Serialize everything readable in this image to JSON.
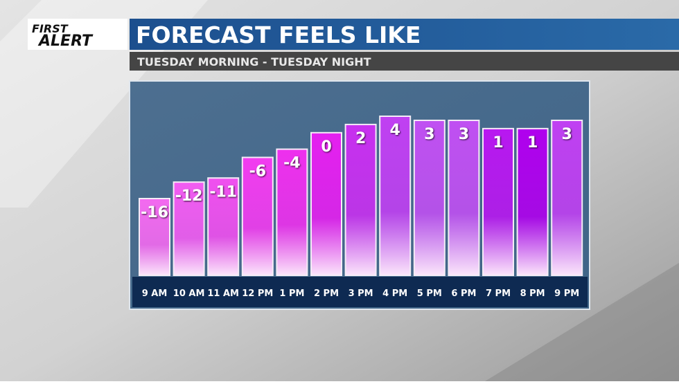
{
  "logo": {
    "line1": "FIRST",
    "line2": "ALERT"
  },
  "chart_data": {
    "type": "bar",
    "title": "FORECAST FEELS LIKE",
    "subtitle": "TUESDAY MORNING - TUESDAY NIGHT",
    "categories": [
      "9 AM",
      "10 AM",
      "11 AM",
      "12 PM",
      "1 PM",
      "2 PM",
      "3 PM",
      "4 PM",
      "5 PM",
      "6 PM",
      "7 PM",
      "8 PM",
      "9 PM"
    ],
    "values": [
      -16,
      -12,
      -11,
      -6,
      -4,
      0,
      2,
      4,
      3,
      3,
      1,
      1,
      3
    ],
    "colors": [
      "#f36af0",
      "#f25cf2",
      "#f050ef",
      "#f23cf0",
      "#ee30ee",
      "#e520f0",
      "#c830f0",
      "#c040f2",
      "#c050f2",
      "#c050f2",
      "#b818f0",
      "#b000ee",
      "#c040f2"
    ]
  }
}
